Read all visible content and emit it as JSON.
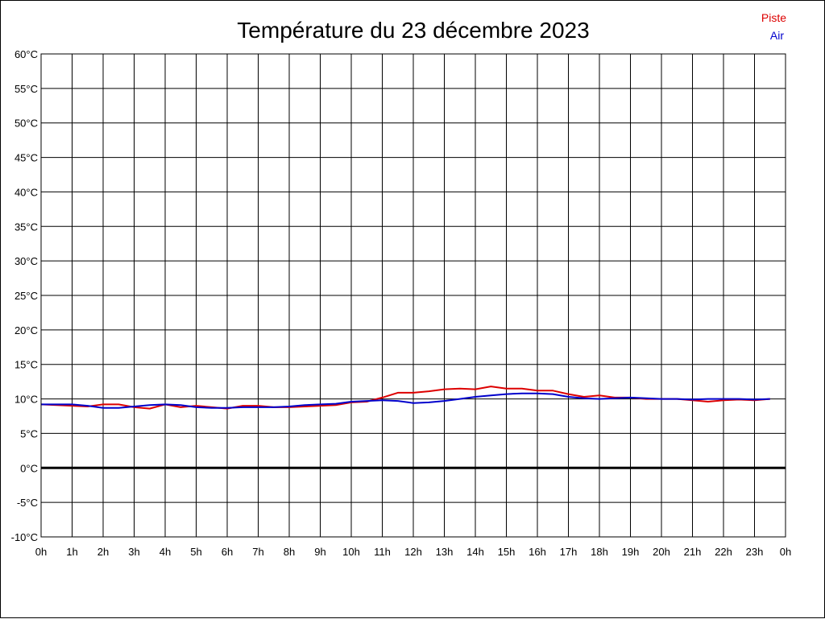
{
  "chart_data": {
    "type": "line",
    "title": "Température du 23 décembre 2023",
    "xlabel": "",
    "ylabel": "",
    "ylim": [
      -10,
      60
    ],
    "xlim": [
      0,
      24
    ],
    "grid": true,
    "legend_position": "top-right",
    "y_ticks": [
      "-10°C",
      "-5°C",
      "0°C",
      "5°C",
      "10°C",
      "15°C",
      "20°C",
      "25°C",
      "30°C",
      "35°C",
      "40°C",
      "45°C",
      "50°C",
      "55°C",
      "60°C"
    ],
    "y_tick_values": [
      -10,
      -5,
      0,
      5,
      10,
      15,
      20,
      25,
      30,
      35,
      40,
      45,
      50,
      55,
      60
    ],
    "x_ticks": [
      "0h",
      "1h",
      "2h",
      "3h",
      "4h",
      "5h",
      "6h",
      "7h",
      "8h",
      "9h",
      "10h",
      "11h",
      "12h",
      "13h",
      "14h",
      "15h",
      "16h",
      "17h",
      "18h",
      "19h",
      "20h",
      "21h",
      "22h",
      "23h",
      "0h"
    ],
    "zero_line_value": 0,
    "series": [
      {
        "name": "Piste",
        "color": "#dd0000",
        "x": [
          0,
          0.5,
          1,
          1.5,
          2,
          2.5,
          3,
          3.5,
          4,
          4.5,
          5,
          5.5,
          6,
          6.5,
          7,
          7.5,
          8,
          8.5,
          9,
          9.5,
          10,
          10.5,
          11,
          11.5,
          12,
          12.5,
          13,
          13.5,
          14,
          14.5,
          15,
          15.5,
          16,
          16.5,
          17,
          17.5,
          18,
          18.5,
          19,
          19.5,
          20,
          20.5,
          21,
          21.5,
          22,
          22.5,
          23,
          23.5
        ],
        "values": [
          9.2,
          9.1,
          9.0,
          8.9,
          9.2,
          9.2,
          8.8,
          8.6,
          9.2,
          8.8,
          9.0,
          8.8,
          8.6,
          9.0,
          9.0,
          8.8,
          8.8,
          8.9,
          9.0,
          9.1,
          9.5,
          9.6,
          10.2,
          10.9,
          10.9,
          11.1,
          11.4,
          11.5,
          11.4,
          11.8,
          11.5,
          11.5,
          11.2,
          11.2,
          10.7,
          10.3,
          10.5,
          10.2,
          10.2,
          10.0,
          10.0,
          10.0,
          9.8,
          9.6,
          9.8,
          9.9,
          9.8,
          10.0
        ]
      },
      {
        "name": "Air",
        "color": "#0000cc",
        "x": [
          0,
          0.5,
          1,
          1.5,
          2,
          2.5,
          3,
          3.5,
          4,
          4.5,
          5,
          5.5,
          6,
          6.5,
          7,
          7.5,
          8,
          8.5,
          9,
          9.5,
          10,
          10.5,
          11,
          11.5,
          12,
          12.5,
          13,
          13.5,
          14,
          14.5,
          15,
          15.5,
          16,
          16.5,
          17,
          17.5,
          18,
          18.5,
          19,
          19.5,
          20,
          20.5,
          21,
          21.5,
          22,
          22.5,
          23,
          23.5
        ],
        "values": [
          9.2,
          9.2,
          9.2,
          9.0,
          8.7,
          8.7,
          8.9,
          9.1,
          9.2,
          9.1,
          8.8,
          8.7,
          8.7,
          8.8,
          8.8,
          8.8,
          8.9,
          9.1,
          9.2,
          9.3,
          9.6,
          9.7,
          9.8,
          9.7,
          9.4,
          9.5,
          9.7,
          10.0,
          10.3,
          10.5,
          10.7,
          10.8,
          10.8,
          10.7,
          10.3,
          10.1,
          10.0,
          10.1,
          10.2,
          10.1,
          10.0,
          10.0,
          9.9,
          10.0,
          10.0,
          10.0,
          9.9,
          10.0
        ]
      }
    ]
  }
}
